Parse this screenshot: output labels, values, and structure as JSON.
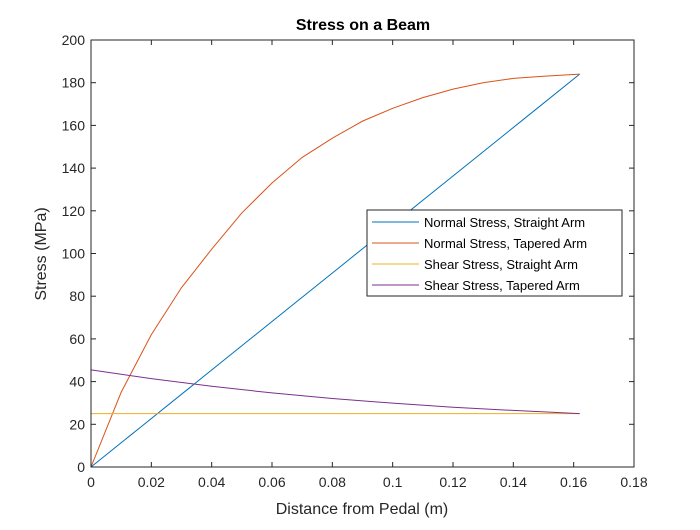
{
  "chart_data": {
    "type": "line",
    "title": "Stress on a Beam",
    "xlabel": "Distance from Pedal (m)",
    "ylabel": "Stress (MPa)",
    "xlim": [
      0,
      0.18
    ],
    "ylim": [
      0,
      200
    ],
    "xticks": [
      0,
      0.02,
      0.04,
      0.06,
      0.08,
      0.1,
      0.12,
      0.14,
      0.16,
      0.18
    ],
    "xtick_labels": [
      "0",
      "0.02",
      "0.04",
      "0.06",
      "0.08",
      "0.1",
      "0.12",
      "0.14",
      "0.16",
      "0.18"
    ],
    "yticks": [
      0,
      20,
      40,
      60,
      80,
      100,
      120,
      140,
      160,
      180,
      200
    ],
    "ytick_labels": [
      "0",
      "20",
      "40",
      "60",
      "80",
      "100",
      "120",
      "140",
      "160",
      "180",
      "200"
    ],
    "grid": false,
    "box": true,
    "legend_position": "right",
    "series": [
      {
        "name": "Normal Stress, Straight Arm",
        "color": "#0072bd",
        "x": [
          0,
          0.0162,
          0.0324,
          0.0486,
          0.0648,
          0.081,
          0.0972,
          0.1134,
          0.1296,
          0.1458,
          0.162
        ],
        "y": [
          0,
          18.4,
          36.8,
          55.2,
          73.6,
          92.0,
          110.4,
          128.8,
          147.2,
          165.6,
          184
        ]
      },
      {
        "name": "Normal Stress, Tapered Arm",
        "color": "#d95319",
        "x": [
          0,
          0.01,
          0.02,
          0.03,
          0.04,
          0.05,
          0.06,
          0.07,
          0.08,
          0.09,
          0.1,
          0.11,
          0.12,
          0.13,
          0.14,
          0.15,
          0.162
        ],
        "y": [
          0,
          35,
          62,
          84,
          102,
          119,
          133,
          145,
          154,
          162,
          168,
          173,
          177,
          180,
          182,
          183,
          184
        ]
      },
      {
        "name": "Shear Stress, Straight Arm",
        "color": "#edb120",
        "x": [
          0,
          0.162
        ],
        "y": [
          25,
          25
        ]
      },
      {
        "name": "Shear Stress, Tapered Arm",
        "color": "#7e2f8e",
        "x": [
          0,
          0.02,
          0.04,
          0.06,
          0.08,
          0.1,
          0.12,
          0.14,
          0.162
        ],
        "y": [
          45.5,
          41.4,
          37.8,
          34.7,
          32.1,
          29.9,
          28.0,
          26.5,
          25
        ]
      }
    ]
  }
}
